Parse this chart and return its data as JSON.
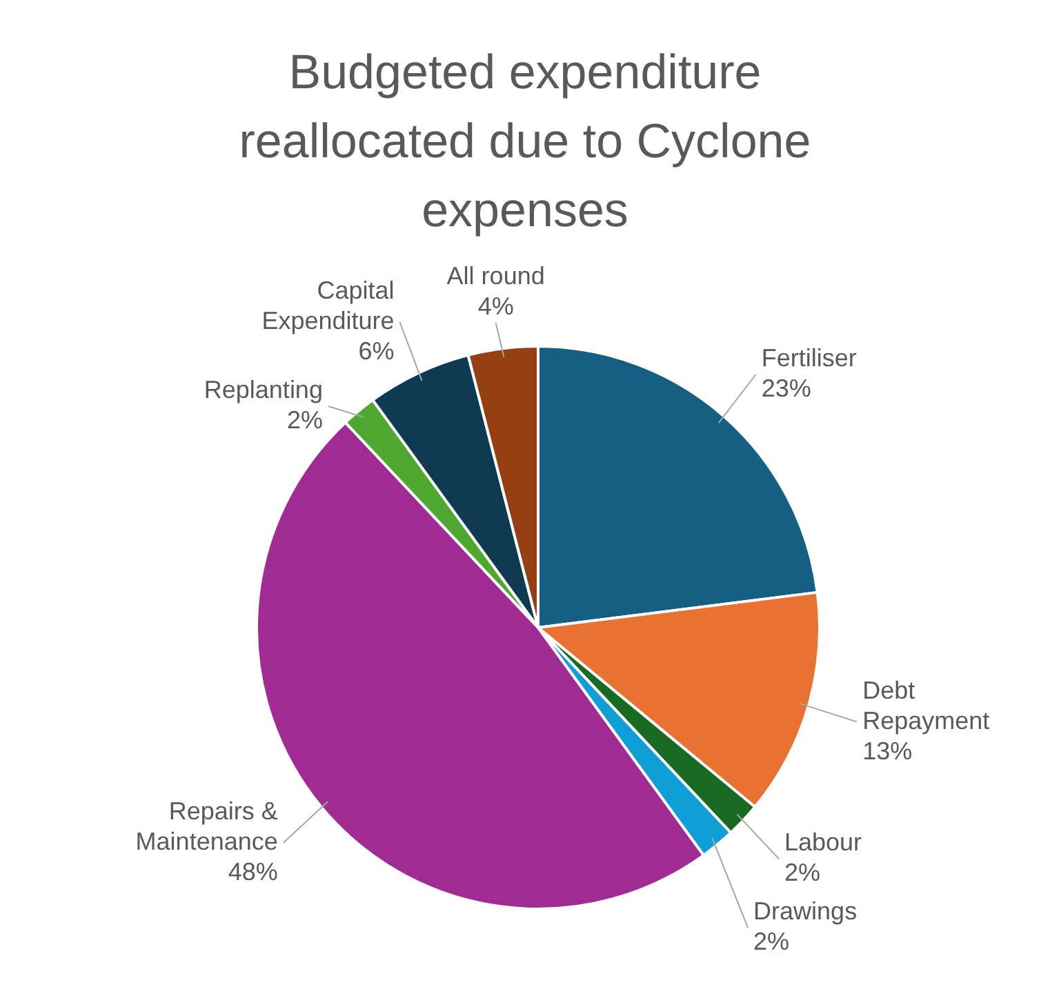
{
  "chart_data": {
    "type": "pie",
    "title": "Budgeted expenditure reallocated due to Cyclone expenses",
    "categories": [
      "Fertiliser",
      "Debt Repayment",
      "Labour",
      "Drawings",
      "Repairs & Maintenance",
      "Replanting",
      "Capital Expenditure",
      "All round"
    ],
    "values": [
      23,
      13,
      2,
      2,
      48,
      2,
      6,
      4
    ],
    "colors": [
      "#156082",
      "#e97132",
      "#196b24",
      "#0f9ed5",
      "#a02b93",
      "#4ea72e",
      "#0e3a52",
      "#953f13"
    ],
    "value_labels": [
      "23%",
      "13%",
      "2%",
      "2%",
      "48%",
      "2%",
      "6%",
      "4%"
    ],
    "legend": false
  }
}
